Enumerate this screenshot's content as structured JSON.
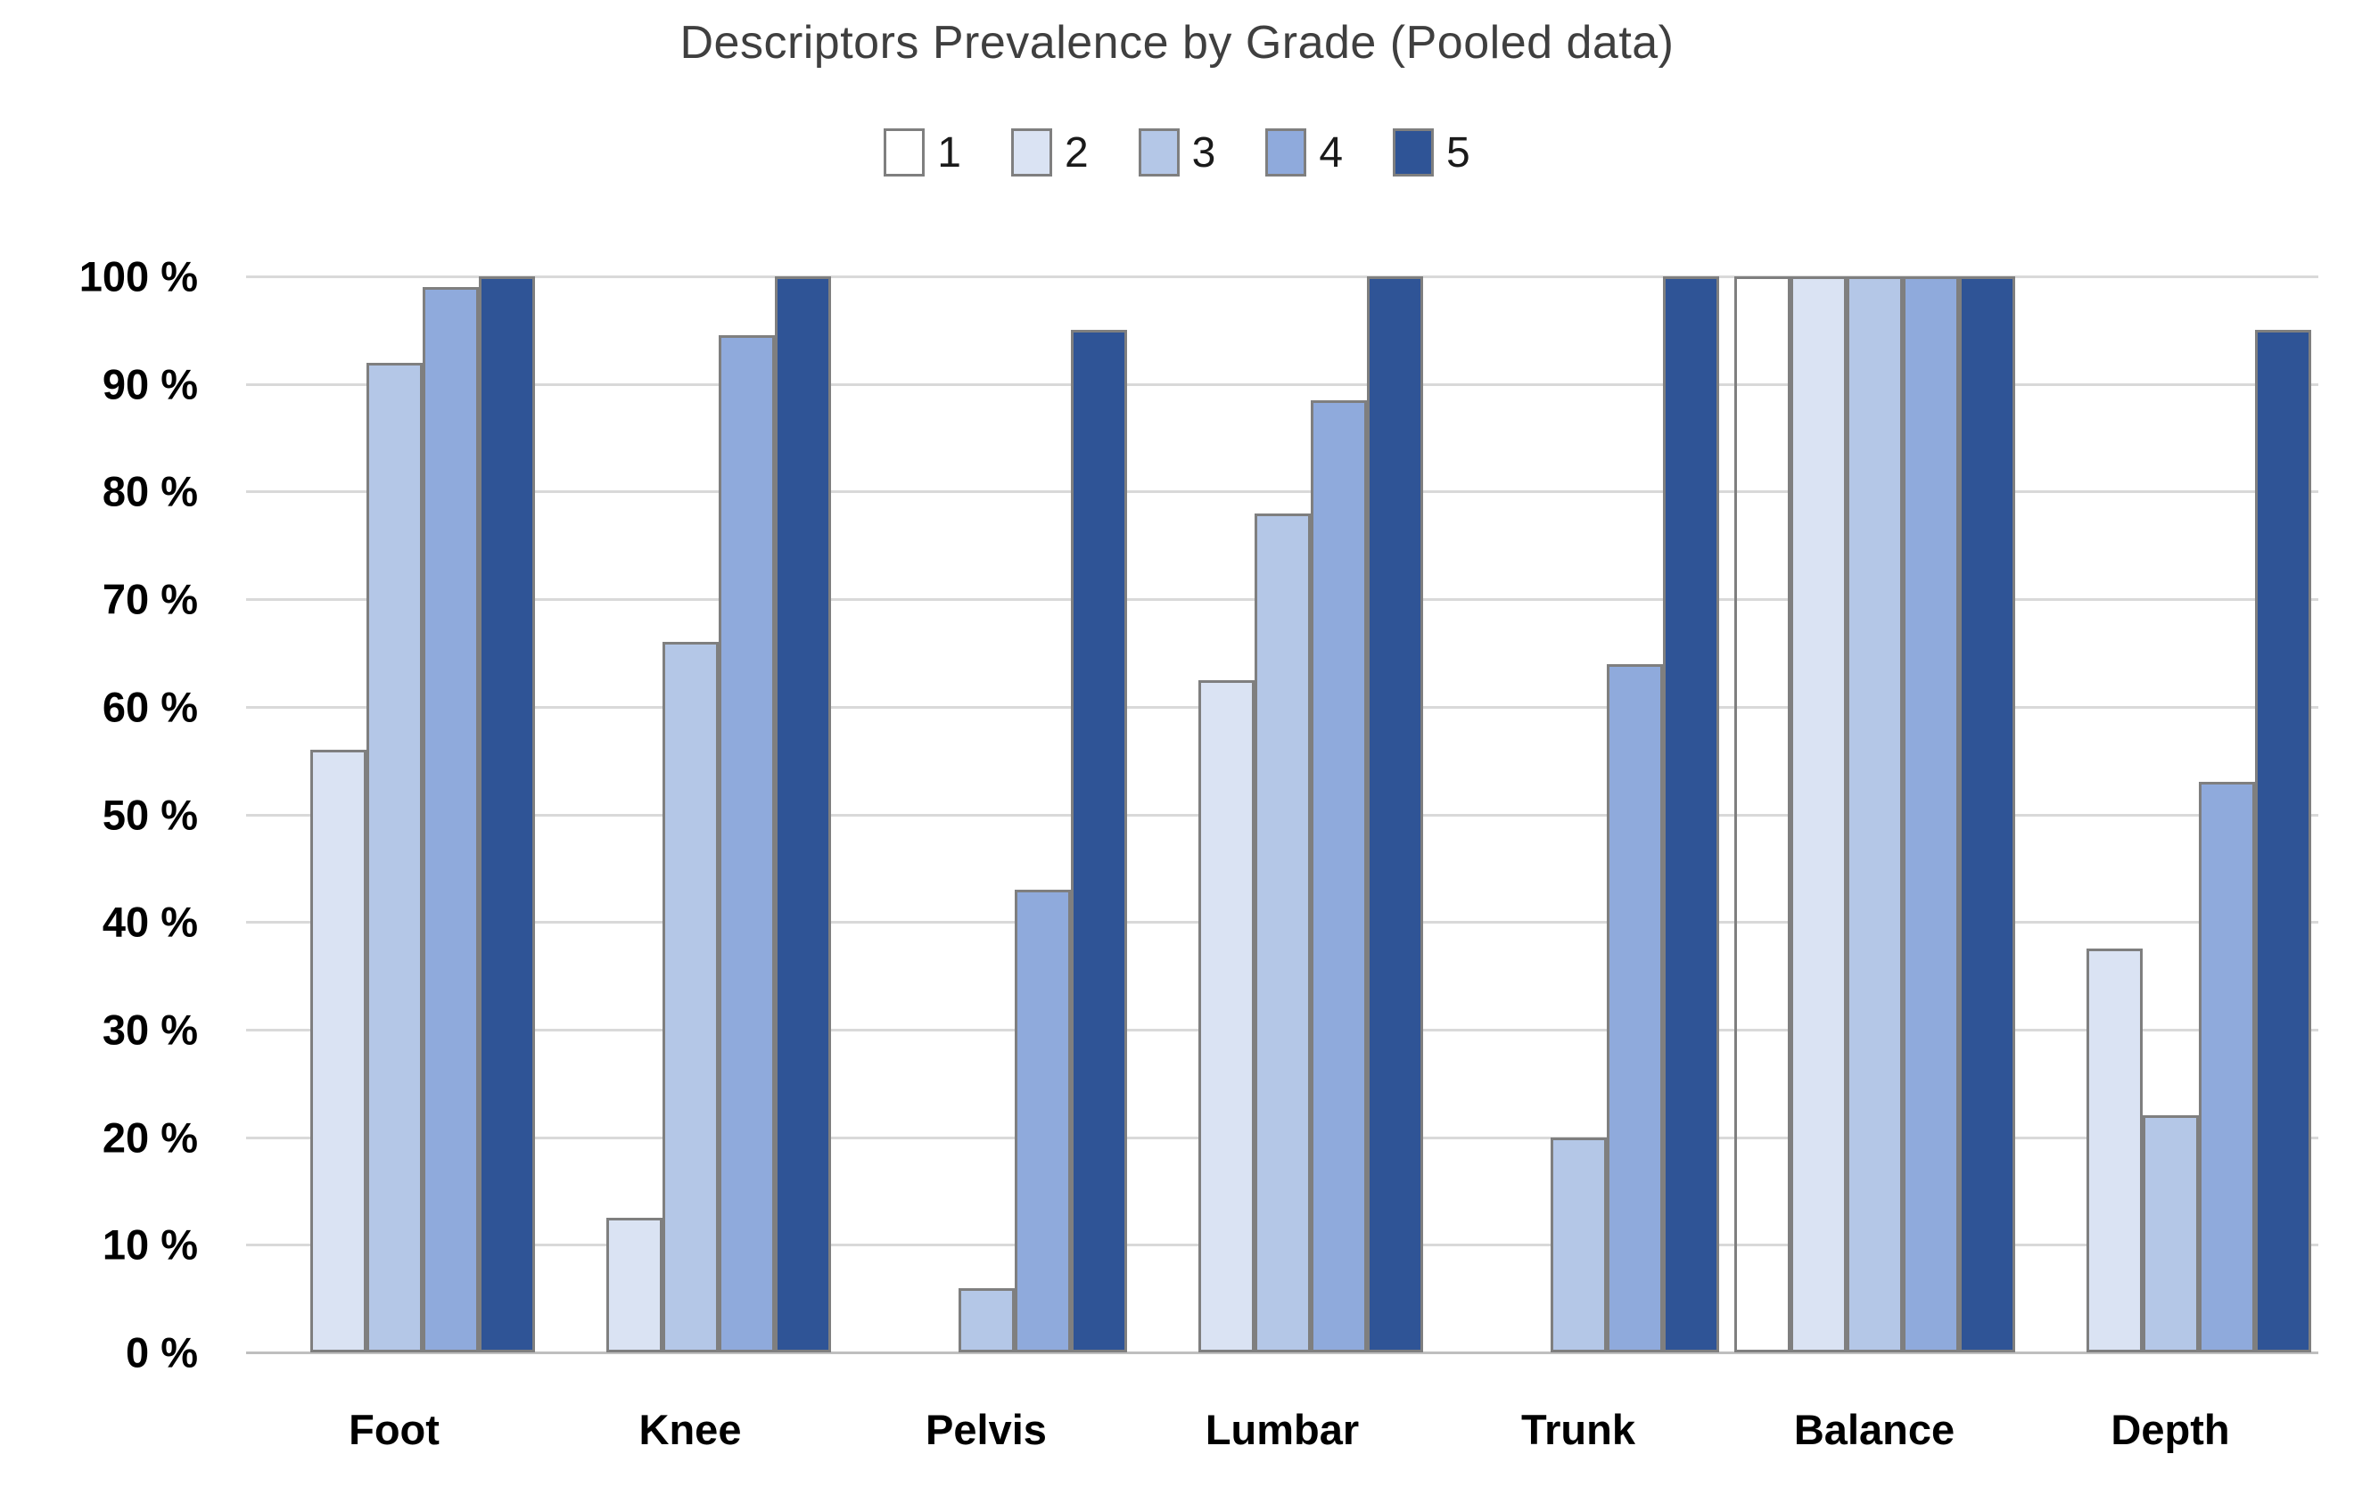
{
  "chart_data": {
    "type": "bar",
    "title": "Descriptors Prevalence by Grade (Pooled data)",
    "categories": [
      "Foot",
      "Knee",
      "Pelvis",
      "Lumbar",
      "Trunk",
      "Balance",
      "Depth"
    ],
    "series": [
      {
        "name": "1",
        "color": "#ffffff",
        "values": [
          0,
          0,
          0,
          0,
          0,
          100,
          0
        ]
      },
      {
        "name": "2",
        "color": "#dae3f3",
        "values": [
          56,
          12.5,
          0,
          62.5,
          0,
          100,
          37.5
        ]
      },
      {
        "name": "3",
        "color": "#b4c7e7",
        "values": [
          92,
          66,
          6,
          78,
          20,
          100,
          22
        ]
      },
      {
        "name": "4",
        "color": "#8faadc",
        "values": [
          99,
          94.5,
          43,
          88.5,
          64,
          100,
          53
        ]
      },
      {
        "name": "5",
        "color": "#2f5496",
        "values": [
          100,
          100,
          95,
          100,
          100,
          100,
          95
        ]
      }
    ],
    "y_ticks": [
      "100 %",
      "90 %",
      "80 %",
      "70 %",
      "60 %",
      "50 %",
      "40 %",
      "30 %",
      "20 %",
      "10 %",
      "0 %"
    ],
    "ylim": [
      0,
      100
    ],
    "grid": true,
    "legend_position": "top",
    "xlabel": "",
    "ylabel": "",
    "bar_border_color": "#7f7f7f",
    "gridline_color": "#d9d9d9",
    "title_color": "#3f3f3f"
  }
}
